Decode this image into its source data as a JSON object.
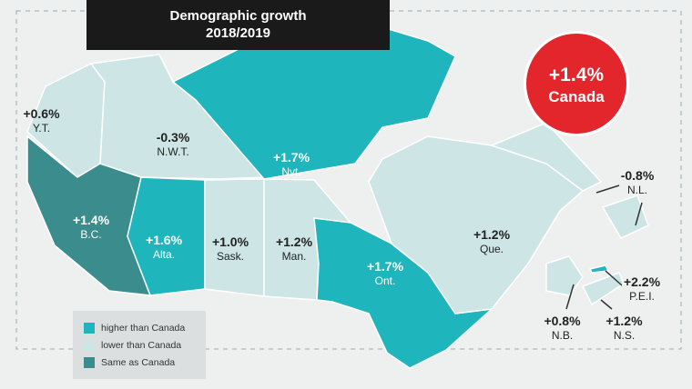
{
  "title": {
    "line1": "Demographic growth",
    "line2": "2018/2019"
  },
  "national": {
    "value": "+1.4%",
    "name": "Canada",
    "color": "#e2262b"
  },
  "colors": {
    "higher": "#1fb5bd",
    "lower": "#cde5e5",
    "same": "#3b8c8c"
  },
  "legend": [
    {
      "label": "higher than Canada",
      "category": "higher"
    },
    {
      "label": "lower than Canada",
      "category": "lower"
    },
    {
      "label": "Same as Canada",
      "category": "same"
    }
  ],
  "regions": [
    {
      "abbr": "Y.T.",
      "value": "+0.6%",
      "category": "lower"
    },
    {
      "abbr": "N.W.T.",
      "value": "-0.3%",
      "category": "lower"
    },
    {
      "abbr": "Nvt.",
      "value": "+1.7%",
      "category": "higher"
    },
    {
      "abbr": "B.C.",
      "value": "+1.4%",
      "category": "same"
    },
    {
      "abbr": "Alta.",
      "value": "+1.6%",
      "category": "higher"
    },
    {
      "abbr": "Sask.",
      "value": "+1.0%",
      "category": "lower"
    },
    {
      "abbr": "Man.",
      "value": "+1.2%",
      "category": "lower"
    },
    {
      "abbr": "Ont.",
      "value": "+1.7%",
      "category": "higher"
    },
    {
      "abbr": "Que.",
      "value": "+1.2%",
      "category": "lower"
    },
    {
      "abbr": "N.L.",
      "value": "-0.8%",
      "category": "lower"
    },
    {
      "abbr": "P.E.I.",
      "value": "+2.2%",
      "category": "higher"
    },
    {
      "abbr": "N.B.",
      "value": "+0.8%",
      "category": "lower"
    },
    {
      "abbr": "N.S.",
      "value": "+1.2%",
      "category": "lower"
    }
  ]
}
